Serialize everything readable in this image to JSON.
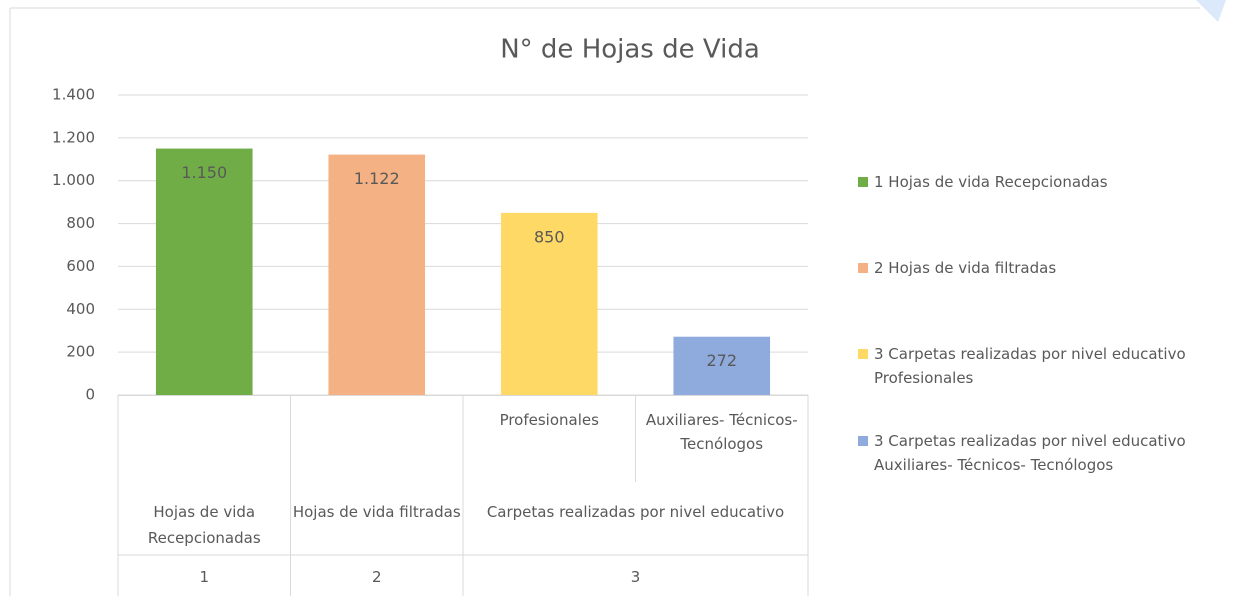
{
  "chart_data": {
    "type": "bar",
    "title": "N° de Hojas de Vida",
    "groups": [
      {
        "code": "1",
        "label": "Hojas de vida Recepcionadas",
        "categories": [
          null
        ]
      },
      {
        "code": "2",
        "label": "Hojas de vida filtradas",
        "categories": [
          null
        ]
      },
      {
        "code": "3",
        "label": "Carpetas realizadas por nivel educativo",
        "categories": [
          "Profesionales",
          "Auxiliares- Técnicos- Tecnólogos"
        ]
      }
    ],
    "series": [
      {
        "name": "1 Hojas de vida Recepcionadas",
        "color": "#70ad47",
        "values": [
          1150
        ],
        "value_labels": [
          "1.150"
        ]
      },
      {
        "name": "2 Hojas de vida filtradas",
        "color": "#f4b183",
        "values": [
          1122
        ],
        "value_labels": [
          "1.122"
        ]
      },
      {
        "name": "3 Carpetas realizadas por nivel educativo Profesionales",
        "color": "#ffd966",
        "values": [
          850
        ],
        "value_labels": [
          "850"
        ]
      },
      {
        "name": "3 Carpetas realizadas por nivel educativo Auxiliares- Técnicos- Tecnólogos",
        "color": "#8faadc",
        "values": [
          272
        ],
        "value_labels": [
          "272"
        ]
      }
    ],
    "ylim": [
      0,
      1400
    ],
    "yticks": [
      0,
      200,
      400,
      600,
      800,
      {
        "value": 1000,
        "label": "1.000"
      },
      {
        "value": 1200,
        "label": "1.200"
      },
      {
        "value": 1400,
        "label": "1.400"
      }
    ],
    "grid": true,
    "legend": "right"
  }
}
